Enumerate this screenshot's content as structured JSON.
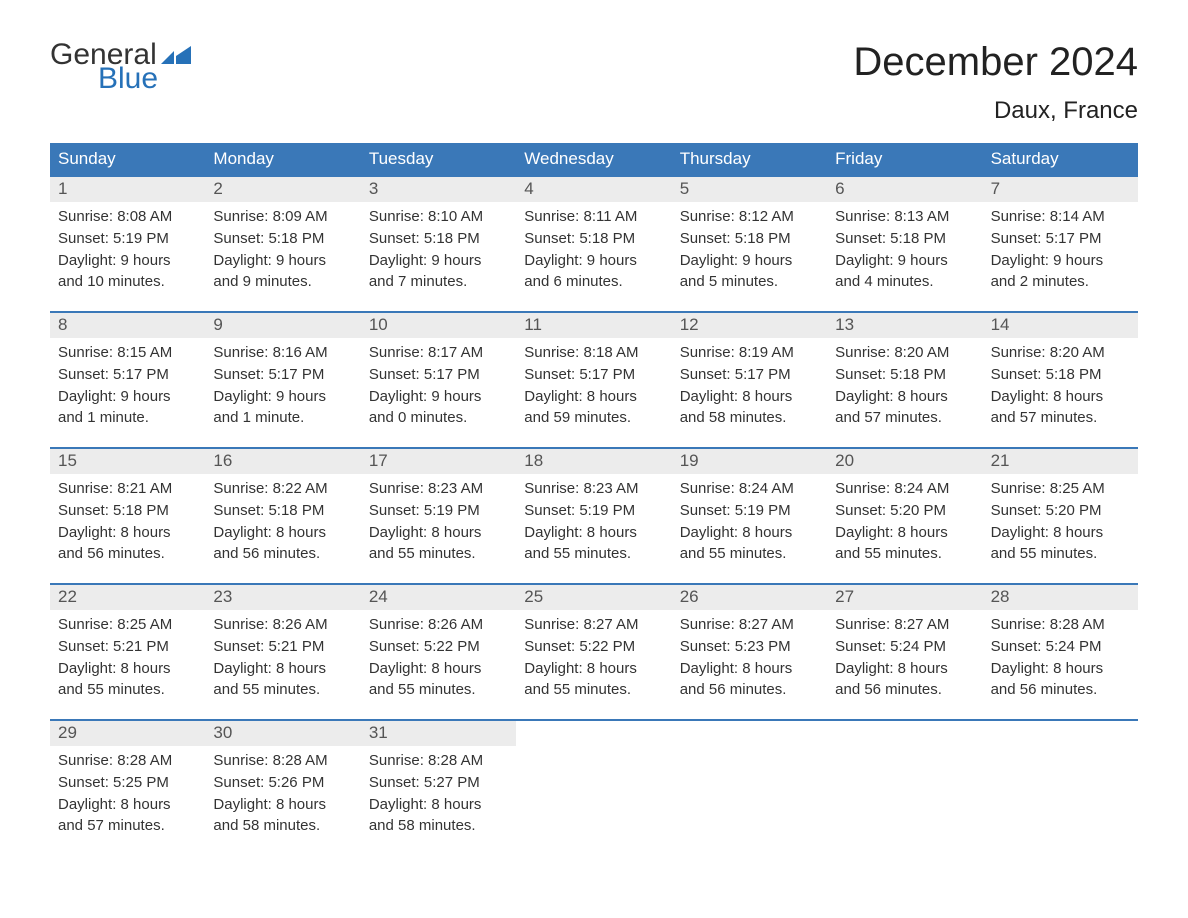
{
  "brand": {
    "top": "General",
    "bottom": "Blue",
    "mark_color": "#2671b8"
  },
  "title": {
    "month": "December 2024",
    "location": "Daux, France"
  },
  "colors": {
    "header_bg": "#3a78b8",
    "header_text": "#ffffff",
    "week_border": "#3a78b8",
    "daynum_bg": "#ececec",
    "daynum_text": "#555555",
    "body_text": "#333333",
    "background": "#ffffff"
  },
  "typography": {
    "month_fontsize": 40,
    "location_fontsize": 24,
    "header_fontsize": 17,
    "daynum_fontsize": 17,
    "body_fontsize": 15
  },
  "day_labels": [
    "Sunday",
    "Monday",
    "Tuesday",
    "Wednesday",
    "Thursday",
    "Friday",
    "Saturday"
  ],
  "weeks": [
    [
      {
        "n": "1",
        "sunrise": "Sunrise: 8:08 AM",
        "sunset": "Sunset: 5:19 PM",
        "dl1": "Daylight: 9 hours",
        "dl2": "and 10 minutes."
      },
      {
        "n": "2",
        "sunrise": "Sunrise: 8:09 AM",
        "sunset": "Sunset: 5:18 PM",
        "dl1": "Daylight: 9 hours",
        "dl2": "and 9 minutes."
      },
      {
        "n": "3",
        "sunrise": "Sunrise: 8:10 AM",
        "sunset": "Sunset: 5:18 PM",
        "dl1": "Daylight: 9 hours",
        "dl2": "and 7 minutes."
      },
      {
        "n": "4",
        "sunrise": "Sunrise: 8:11 AM",
        "sunset": "Sunset: 5:18 PM",
        "dl1": "Daylight: 9 hours",
        "dl2": "and 6 minutes."
      },
      {
        "n": "5",
        "sunrise": "Sunrise: 8:12 AM",
        "sunset": "Sunset: 5:18 PM",
        "dl1": "Daylight: 9 hours",
        "dl2": "and 5 minutes."
      },
      {
        "n": "6",
        "sunrise": "Sunrise: 8:13 AM",
        "sunset": "Sunset: 5:18 PM",
        "dl1": "Daylight: 9 hours",
        "dl2": "and 4 minutes."
      },
      {
        "n": "7",
        "sunrise": "Sunrise: 8:14 AM",
        "sunset": "Sunset: 5:17 PM",
        "dl1": "Daylight: 9 hours",
        "dl2": "and 2 minutes."
      }
    ],
    [
      {
        "n": "8",
        "sunrise": "Sunrise: 8:15 AM",
        "sunset": "Sunset: 5:17 PM",
        "dl1": "Daylight: 9 hours",
        "dl2": "and 1 minute."
      },
      {
        "n": "9",
        "sunrise": "Sunrise: 8:16 AM",
        "sunset": "Sunset: 5:17 PM",
        "dl1": "Daylight: 9 hours",
        "dl2": "and 1 minute."
      },
      {
        "n": "10",
        "sunrise": "Sunrise: 8:17 AM",
        "sunset": "Sunset: 5:17 PM",
        "dl1": "Daylight: 9 hours",
        "dl2": "and 0 minutes."
      },
      {
        "n": "11",
        "sunrise": "Sunrise: 8:18 AM",
        "sunset": "Sunset: 5:17 PM",
        "dl1": "Daylight: 8 hours",
        "dl2": "and 59 minutes."
      },
      {
        "n": "12",
        "sunrise": "Sunrise: 8:19 AM",
        "sunset": "Sunset: 5:17 PM",
        "dl1": "Daylight: 8 hours",
        "dl2": "and 58 minutes."
      },
      {
        "n": "13",
        "sunrise": "Sunrise: 8:20 AM",
        "sunset": "Sunset: 5:18 PM",
        "dl1": "Daylight: 8 hours",
        "dl2": "and 57 minutes."
      },
      {
        "n": "14",
        "sunrise": "Sunrise: 8:20 AM",
        "sunset": "Sunset: 5:18 PM",
        "dl1": "Daylight: 8 hours",
        "dl2": "and 57 minutes."
      }
    ],
    [
      {
        "n": "15",
        "sunrise": "Sunrise: 8:21 AM",
        "sunset": "Sunset: 5:18 PM",
        "dl1": "Daylight: 8 hours",
        "dl2": "and 56 minutes."
      },
      {
        "n": "16",
        "sunrise": "Sunrise: 8:22 AM",
        "sunset": "Sunset: 5:18 PM",
        "dl1": "Daylight: 8 hours",
        "dl2": "and 56 minutes."
      },
      {
        "n": "17",
        "sunrise": "Sunrise: 8:23 AM",
        "sunset": "Sunset: 5:19 PM",
        "dl1": "Daylight: 8 hours",
        "dl2": "and 55 minutes."
      },
      {
        "n": "18",
        "sunrise": "Sunrise: 8:23 AM",
        "sunset": "Sunset: 5:19 PM",
        "dl1": "Daylight: 8 hours",
        "dl2": "and 55 minutes."
      },
      {
        "n": "19",
        "sunrise": "Sunrise: 8:24 AM",
        "sunset": "Sunset: 5:19 PM",
        "dl1": "Daylight: 8 hours",
        "dl2": "and 55 minutes."
      },
      {
        "n": "20",
        "sunrise": "Sunrise: 8:24 AM",
        "sunset": "Sunset: 5:20 PM",
        "dl1": "Daylight: 8 hours",
        "dl2": "and 55 minutes."
      },
      {
        "n": "21",
        "sunrise": "Sunrise: 8:25 AM",
        "sunset": "Sunset: 5:20 PM",
        "dl1": "Daylight: 8 hours",
        "dl2": "and 55 minutes."
      }
    ],
    [
      {
        "n": "22",
        "sunrise": "Sunrise: 8:25 AM",
        "sunset": "Sunset: 5:21 PM",
        "dl1": "Daylight: 8 hours",
        "dl2": "and 55 minutes."
      },
      {
        "n": "23",
        "sunrise": "Sunrise: 8:26 AM",
        "sunset": "Sunset: 5:21 PM",
        "dl1": "Daylight: 8 hours",
        "dl2": "and 55 minutes."
      },
      {
        "n": "24",
        "sunrise": "Sunrise: 8:26 AM",
        "sunset": "Sunset: 5:22 PM",
        "dl1": "Daylight: 8 hours",
        "dl2": "and 55 minutes."
      },
      {
        "n": "25",
        "sunrise": "Sunrise: 8:27 AM",
        "sunset": "Sunset: 5:22 PM",
        "dl1": "Daylight: 8 hours",
        "dl2": "and 55 minutes."
      },
      {
        "n": "26",
        "sunrise": "Sunrise: 8:27 AM",
        "sunset": "Sunset: 5:23 PM",
        "dl1": "Daylight: 8 hours",
        "dl2": "and 56 minutes."
      },
      {
        "n": "27",
        "sunrise": "Sunrise: 8:27 AM",
        "sunset": "Sunset: 5:24 PM",
        "dl1": "Daylight: 8 hours",
        "dl2": "and 56 minutes."
      },
      {
        "n": "28",
        "sunrise": "Sunrise: 8:28 AM",
        "sunset": "Sunset: 5:24 PM",
        "dl1": "Daylight: 8 hours",
        "dl2": "and 56 minutes."
      }
    ],
    [
      {
        "n": "29",
        "sunrise": "Sunrise: 8:28 AM",
        "sunset": "Sunset: 5:25 PM",
        "dl1": "Daylight: 8 hours",
        "dl2": "and 57 minutes."
      },
      {
        "n": "30",
        "sunrise": "Sunrise: 8:28 AM",
        "sunset": "Sunset: 5:26 PM",
        "dl1": "Daylight: 8 hours",
        "dl2": "and 58 minutes."
      },
      {
        "n": "31",
        "sunrise": "Sunrise: 8:28 AM",
        "sunset": "Sunset: 5:27 PM",
        "dl1": "Daylight: 8 hours",
        "dl2": "and 58 minutes."
      },
      null,
      null,
      null,
      null
    ]
  ]
}
